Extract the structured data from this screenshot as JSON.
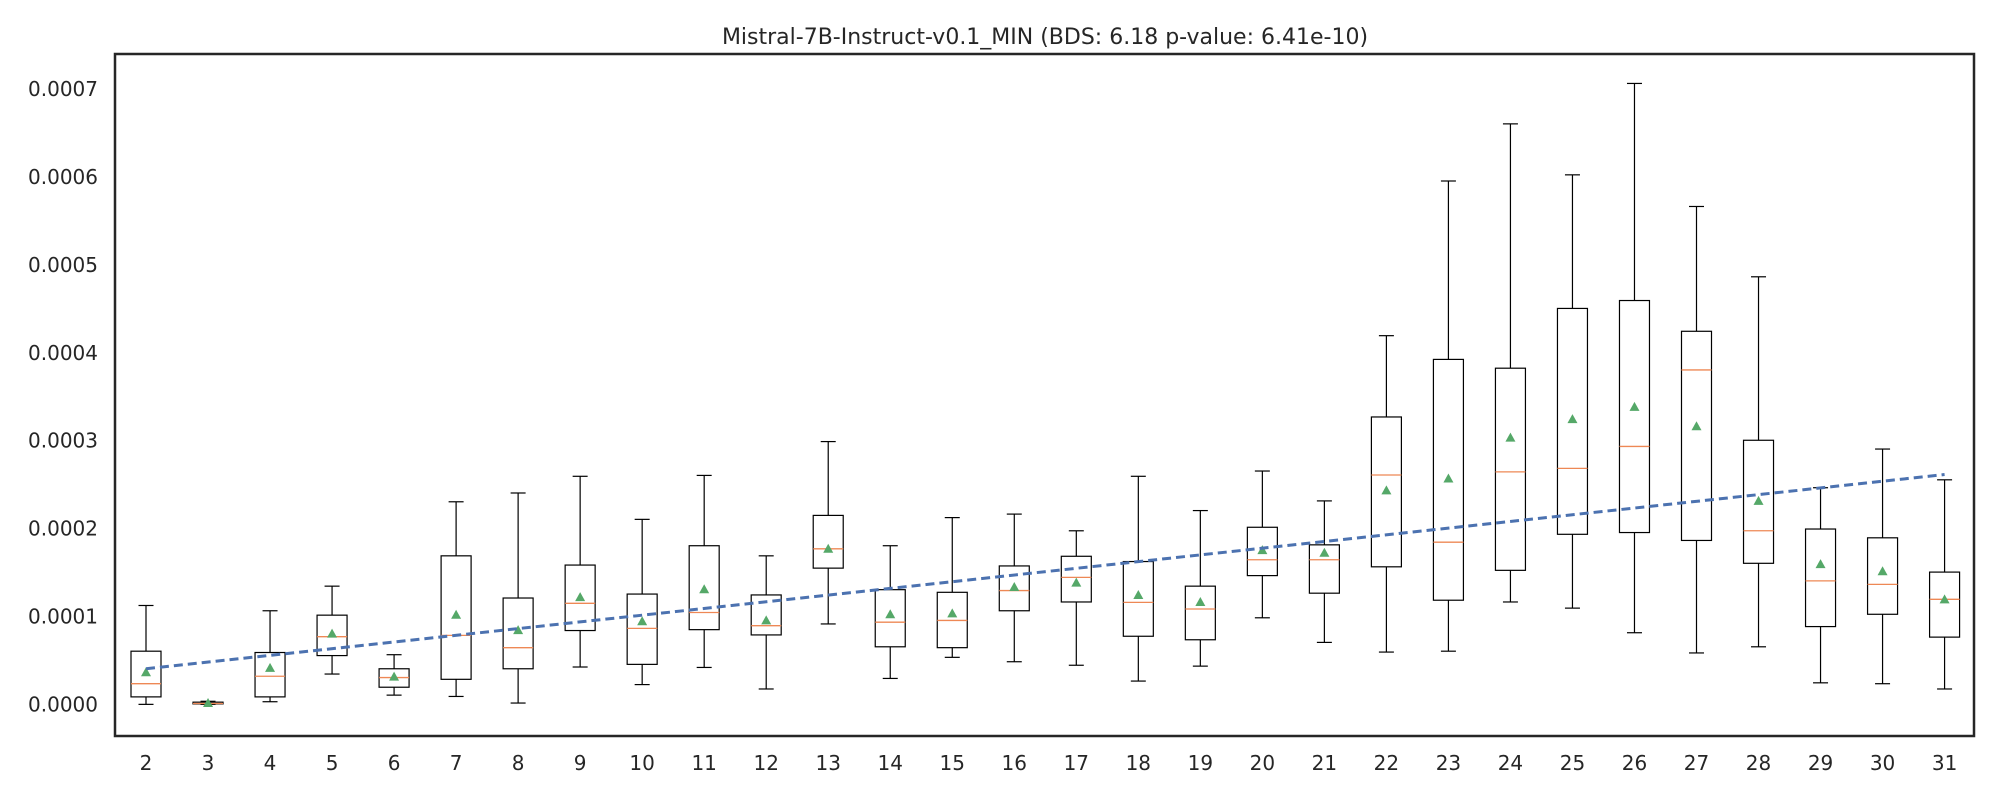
{
  "chart_data": {
    "type": "box",
    "title": "Mistral-7B-Instruct-v0.1_MIN (BDS: 6.18 p-value: 6.41e-10)",
    "xlabel": "",
    "ylabel": "",
    "ylim": [
      -3.6e-05,
      0.00074
    ],
    "yticks": [
      0.0,
      0.0001,
      0.0002,
      0.0003,
      0.0004,
      0.0005,
      0.0006,
      0.0007
    ],
    "ytick_labels": [
      "0.0000",
      "0.0001",
      "0.0002",
      "0.0003",
      "0.0004",
      "0.0005",
      "0.0006",
      "0.0007"
    ],
    "grid": false,
    "colors": {
      "box": "#000000",
      "median": "#ee8855",
      "mean": "#55a868",
      "trend": "#4c72b0",
      "frame": "#262626"
    },
    "boxes": [
      {
        "label": "2",
        "whislo": 0.0,
        "q1": 8.5e-06,
        "med": 2.35e-05,
        "q3": 6.05e-05,
        "whishi": 0.0001125,
        "mean": 3.65e-05
      },
      {
        "label": "3",
        "whislo": 0.0,
        "q1": 5e-07,
        "med": 1e-06,
        "q3": 2.5e-06,
        "whishi": 3.5e-06,
        "mean": 1.5e-06
      },
      {
        "label": "4",
        "whislo": 3e-06,
        "q1": 8.5e-06,
        "med": 3.2e-05,
        "q3": 5.9e-05,
        "whishi": 0.0001065,
        "mean": 4.15e-05
      },
      {
        "label": "5",
        "whislo": 3.45e-05,
        "q1": 5.55e-05,
        "med": 7.7e-05,
        "q3": 0.0001015,
        "whishi": 0.0001345,
        "mean": 8.05e-05
      },
      {
        "label": "6",
        "whislo": 1.05e-05,
        "q1": 1.95e-05,
        "med": 3.05e-05,
        "q3": 4.05e-05,
        "whishi": 5.65e-05,
        "mean": 3.15e-05
      },
      {
        "label": "7",
        "whislo": 9e-06,
        "q1": 2.85e-05,
        "med": 7.85e-05,
        "q3": 0.000169,
        "whishi": 0.0002305,
        "mean": 0.000102
      },
      {
        "label": "8",
        "whislo": 1.5e-06,
        "q1": 4.05e-05,
        "med": 6.45e-05,
        "q3": 0.000121,
        "whishi": 0.0002405,
        "mean": 8.45e-05
      },
      {
        "label": "9",
        "whislo": 4.25e-05,
        "q1": 8.4e-05,
        "med": 0.000115,
        "q3": 0.0001585,
        "whishi": 0.0002595,
        "mean": 0.000122
      },
      {
        "label": "10",
        "whislo": 2.25e-05,
        "q1": 4.55e-05,
        "med": 8.65e-05,
        "q3": 0.0001255,
        "whishi": 0.0002105,
        "mean": 9.45e-05
      },
      {
        "label": "11",
        "whislo": 4.2e-05,
        "q1": 8.5e-05,
        "med": 0.0001045,
        "q3": 0.0001805,
        "whishi": 0.0002605,
        "mean": 0.000131
      },
      {
        "label": "12",
        "whislo": 1.75e-05,
        "q1": 7.9e-05,
        "med": 8.95e-05,
        "q3": 0.0001245,
        "whishi": 0.000169,
        "mean": 9.55e-05
      },
      {
        "label": "13",
        "whislo": 9.15e-05,
        "q1": 0.000155,
        "med": 0.000177,
        "q3": 0.000215,
        "whishi": 0.000299,
        "mean": 0.000177
      },
      {
        "label": "14",
        "whislo": 2.95e-05,
        "q1": 6.55e-05,
        "med": 9.35e-05,
        "q3": 0.0001305,
        "whishi": 0.0001805,
        "mean": 0.0001025
      },
      {
        "label": "15",
        "whislo": 5.35e-05,
        "q1": 6.45e-05,
        "med": 9.55e-05,
        "q3": 0.0001275,
        "whishi": 0.0002125,
        "mean": 0.0001035
      },
      {
        "label": "16",
        "whislo": 4.85e-05,
        "q1": 0.0001065,
        "med": 0.0001295,
        "q3": 0.0001575,
        "whishi": 0.0002165,
        "mean": 0.0001335
      },
      {
        "label": "17",
        "whislo": 4.45e-05,
        "q1": 0.0001165,
        "med": 0.0001445,
        "q3": 0.0001685,
        "whishi": 0.0001975,
        "mean": 0.0001385
      },
      {
        "label": "18",
        "whislo": 2.65e-05,
        "q1": 7.75e-05,
        "med": 0.000116,
        "q3": 0.0001625,
        "whishi": 0.0002595,
        "mean": 0.0001245
      },
      {
        "label": "19",
        "whislo": 4.35e-05,
        "q1": 7.35e-05,
        "med": 0.0001085,
        "q3": 0.0001345,
        "whishi": 0.0002205,
        "mean": 0.0001165
      },
      {
        "label": "20",
        "whislo": 9.85e-05,
        "q1": 0.0001465,
        "med": 0.0001645,
        "q3": 0.0002015,
        "whishi": 0.0002655,
        "mean": 0.0001755
      },
      {
        "label": "21",
        "whislo": 7.05e-05,
        "q1": 0.0001265,
        "med": 0.0001645,
        "q3": 0.0001815,
        "whishi": 0.0002315,
        "mean": 0.0001725
      },
      {
        "label": "22",
        "whislo": 5.95e-05,
        "q1": 0.0001565,
        "med": 0.000261,
        "q3": 0.000327,
        "whishi": 0.0004195,
        "mean": 0.0002435
      },
      {
        "label": "23",
        "whislo": 6.05e-05,
        "q1": 0.0001185,
        "med": 0.0001845,
        "q3": 0.0003925,
        "whishi": 0.0005955,
        "mean": 0.000257
      },
      {
        "label": "24",
        "whislo": 0.0001165,
        "q1": 0.0001525,
        "med": 0.0002645,
        "q3": 0.0003825,
        "whishi": 0.0006605,
        "mean": 0.0003035
      },
      {
        "label": "25",
        "whislo": 0.0001095,
        "q1": 0.0001935,
        "med": 0.0002685,
        "q3": 0.0004505,
        "whishi": 0.0006025,
        "mean": 0.0003245
      },
      {
        "label": "26",
        "whislo": 8.15e-05,
        "q1": 0.0001955,
        "med": 0.0002935,
        "q3": 0.0004595,
        "whishi": 0.0007065,
        "mean": 0.0003385
      },
      {
        "label": "27",
        "whislo": 5.85e-05,
        "q1": 0.0001865,
        "med": 0.0003805,
        "q3": 0.0004245,
        "whishi": 0.0005665,
        "mean": 0.0003165
      },
      {
        "label": "28",
        "whislo": 6.55e-05,
        "q1": 0.0001605,
        "med": 0.0001975,
        "q3": 0.0003005,
        "whishi": 0.0004865,
        "mean": 0.0002315
      },
      {
        "label": "29",
        "whislo": 2.45e-05,
        "q1": 8.85e-05,
        "med": 0.0001405,
        "q3": 0.0001995,
        "whishi": 0.0002465,
        "mean": 0.0001595
      },
      {
        "label": "30",
        "whislo": 2.35e-05,
        "q1": 0.0001025,
        "med": 0.0001365,
        "q3": 0.0001895,
        "whishi": 0.0002905,
        "mean": 0.0001515
      },
      {
        "label": "31",
        "whislo": 1.75e-05,
        "q1": 7.65e-05,
        "med": 0.0001195,
        "q3": 0.0001505,
        "whishi": 0.0002555,
        "mean": 0.0001195
      }
    ],
    "trend": {
      "x_start": "2",
      "y_start": 4.05e-05,
      "x_end": "31",
      "y_end": 0.0002615,
      "style": "dashed"
    }
  }
}
